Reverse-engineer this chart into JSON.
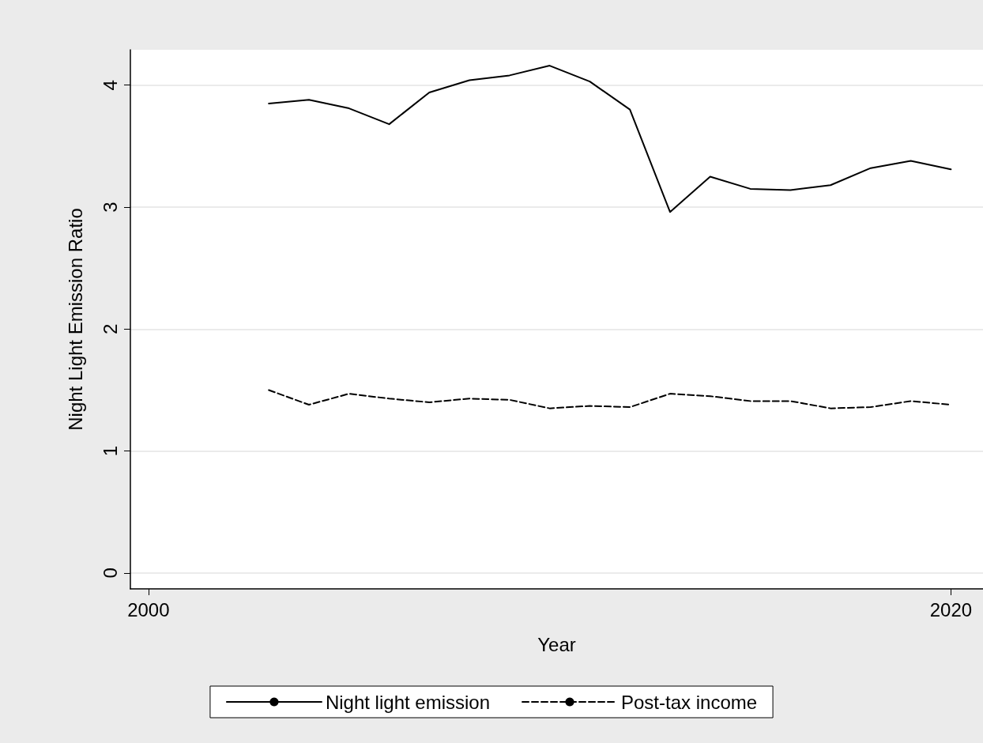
{
  "chart_data": {
    "type": "line",
    "xlabel": "Year",
    "ylabel": "Night Light Emission Ratio",
    "x": [
      2003,
      2004,
      2005,
      2006,
      2007,
      2008,
      2009,
      2010,
      2011,
      2012,
      2013,
      2014,
      2015,
      2016,
      2017,
      2018,
      2019,
      2020
    ],
    "series": [
      {
        "name": "Night light emission",
        "color": "#000000",
        "line_style": "solid",
        "values": [
          3.85,
          3.88,
          3.81,
          3.68,
          3.94,
          4.04,
          4.08,
          4.16,
          4.03,
          3.8,
          2.96,
          3.25,
          3.15,
          3.14,
          3.18,
          3.32,
          3.38,
          3.31
        ]
      },
      {
        "name": "Post-tax income",
        "color": "#000000",
        "line_style": "dashed",
        "values": [
          1.5,
          1.38,
          1.47,
          1.43,
          1.4,
          1.43,
          1.42,
          1.35,
          1.37,
          1.36,
          1.47,
          1.45,
          1.41,
          1.41,
          1.35,
          1.36,
          1.41,
          1.38
        ]
      }
    ],
    "xlim": [
      1999.55,
      2020.8
    ],
    "xticks": [
      2000,
      2020
    ],
    "ylim": [
      -0.13,
      4.29
    ],
    "yticks": [
      0,
      1,
      2,
      3,
      4
    ],
    "grid": "y",
    "legend": "bottom",
    "marker": "none"
  }
}
